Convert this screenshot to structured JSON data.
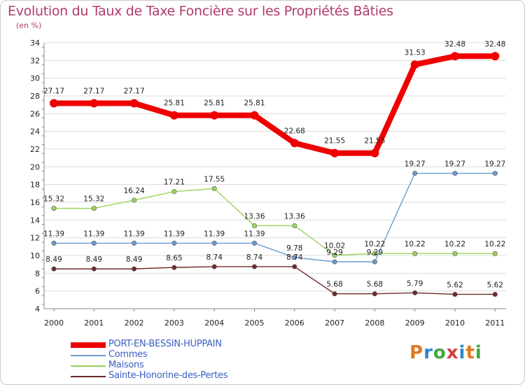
{
  "title": "Evolution du Taux de Taxe Foncière sur les Propriétés Bâties",
  "subtitle": "(en %)",
  "logo_text": "Proxiti",
  "chart_data": {
    "type": "line",
    "title": "Evolution du Taux de Taxe Foncière sur les Propriétés Bâties",
    "ylabel": "(en %)",
    "xlabel": "",
    "ylim": [
      4,
      34
    ],
    "yticks": [
      "4",
      "6",
      "8",
      "10",
      "12",
      "14",
      "16",
      "18",
      "20",
      "22",
      "24",
      "26",
      "28",
      "30",
      "32",
      "34"
    ],
    "categories": [
      "2000",
      "2001",
      "2002",
      "2003",
      "2004",
      "2005",
      "2006",
      "2007",
      "2008",
      "2009",
      "2010",
      "2011"
    ],
    "series": [
      {
        "name": "PORT-EN-BESSIN-HUPPAIN",
        "color": "#ee0000",
        "values": [
          27.17,
          27.17,
          27.17,
          25.81,
          25.81,
          25.81,
          22.68,
          21.55,
          21.55,
          31.53,
          32.48,
          32.48
        ],
        "labels": [
          "27.17",
          "27.17",
          "27.17",
          "25.81",
          "25.81",
          "25.81",
          "22.68",
          "21.55",
          "21.55",
          "31.53",
          "32.48",
          "32.48"
        ]
      },
      {
        "name": "Commes",
        "color": "#6b9bcf",
        "values": [
          11.39,
          11.39,
          11.39,
          11.39,
          11.39,
          11.39,
          9.78,
          9.29,
          9.29,
          19.27,
          19.27,
          19.27
        ],
        "labels": [
          "11.39",
          "11.39",
          "11.39",
          "11.39",
          "11.39",
          "11.39",
          "9.78",
          "9.29",
          "9.29",
          "19.27",
          "19.27",
          "19.27"
        ]
      },
      {
        "name": "Maisons",
        "color": "#9ad45a",
        "values": [
          15.32,
          15.32,
          16.24,
          17.21,
          17.55,
          13.36,
          13.36,
          10.02,
          10.22,
          10.22,
          10.22,
          10.22
        ],
        "labels": [
          "15.32",
          "15.32",
          "16.24",
          "17.21",
          "17.55",
          "13.36",
          "13.36",
          "10.02",
          "10.22",
          "10.22",
          "10.22",
          "10.22"
        ]
      },
      {
        "name": "Sainte-Honorine-des-Pertes",
        "color": "#6e2a2a",
        "values": [
          8.49,
          8.49,
          8.49,
          8.65,
          8.74,
          8.74,
          8.74,
          5.68,
          5.68,
          5.79,
          5.62,
          5.62
        ],
        "labels": [
          "8.49",
          "8.49",
          "8.49",
          "8.65",
          "8.74",
          "8.74",
          "8.74",
          "5.68",
          "5.68",
          "5.79",
          "5.62",
          "5.62"
        ]
      }
    ]
  }
}
